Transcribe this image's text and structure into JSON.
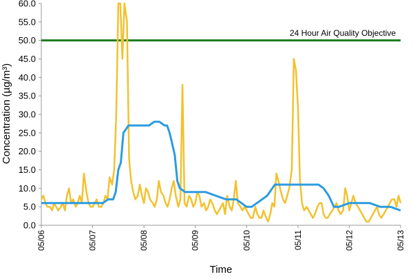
{
  "chart_data": {
    "type": "line",
    "title": "",
    "xlabel": "Time",
    "ylabel": "Concentration (µg/m³)",
    "ylim": [
      0,
      60
    ],
    "y_ticks": [
      "0.0",
      "5.0",
      "10.0",
      "15.0",
      "20.0",
      "25.0",
      "30.0",
      "35.0",
      "40.0",
      "45.0",
      "50.0",
      "55.0",
      "60.0"
    ],
    "x_ticks": [
      "05/06",
      "05/07",
      "05/08",
      "05/09",
      "05/10",
      "05/11",
      "05/12",
      "05/13"
    ],
    "xlim_days": [
      0,
      7
    ],
    "grid": false,
    "annotation": "24 Hour Air Quality Objective",
    "objective_value": 50,
    "colors": {
      "hourly": "#F2C12E",
      "rolling": "#2B9BE0",
      "objective": "#1E7A1E"
    },
    "series": [
      {
        "key": "hourly",
        "x_days": [
          0.0,
          0.04,
          0.08,
          0.12,
          0.17,
          0.21,
          0.25,
          0.29,
          0.33,
          0.38,
          0.42,
          0.46,
          0.5,
          0.54,
          0.58,
          0.62,
          0.67,
          0.71,
          0.75,
          0.79,
          0.83,
          0.88,
          0.92,
          0.96,
          1.0,
          1.04,
          1.08,
          1.12,
          1.17,
          1.21,
          1.25,
          1.29,
          1.33,
          1.38,
          1.42,
          1.46,
          1.5,
          1.54,
          1.58,
          1.62,
          1.67,
          1.71,
          1.75,
          1.79,
          1.83,
          1.88,
          1.92,
          1.96,
          2.0,
          2.04,
          2.08,
          2.12,
          2.17,
          2.21,
          2.25,
          2.29,
          2.33,
          2.38,
          2.42,
          2.46,
          2.5,
          2.54,
          2.58,
          2.62,
          2.67,
          2.71,
          2.75,
          2.79,
          2.83,
          2.88,
          2.92,
          2.96,
          3.0,
          3.04,
          3.08,
          3.12,
          3.17,
          3.21,
          3.25,
          3.29,
          3.33,
          3.38,
          3.42,
          3.46,
          3.5,
          3.54,
          3.58,
          3.62,
          3.67,
          3.71,
          3.75,
          3.79,
          3.83,
          3.88,
          3.92,
          3.96,
          4.0,
          4.04,
          4.08,
          4.12,
          4.17,
          4.21,
          4.25,
          4.29,
          4.33,
          4.38,
          4.42,
          4.46,
          4.5,
          4.54,
          4.58,
          4.62,
          4.67,
          4.71,
          4.75,
          4.79,
          4.83,
          4.88,
          4.92,
          4.96,
          5.0,
          5.04,
          5.08,
          5.12,
          5.17,
          5.21,
          5.25,
          5.29,
          5.33,
          5.38,
          5.42,
          5.46,
          5.5,
          5.54,
          5.58,
          5.62,
          5.67,
          5.71,
          5.75,
          5.79,
          5.83,
          5.88,
          5.92,
          5.96,
          6.0,
          6.04,
          6.08,
          6.12,
          6.17,
          6.21,
          6.25,
          6.29,
          6.33,
          6.38,
          6.42,
          6.46,
          6.5,
          6.54,
          6.58,
          6.62,
          6.67,
          6.71,
          6.75,
          6.79,
          6.83,
          6.88,
          6.92,
          6.96,
          7.0
        ],
        "values": [
          7,
          8,
          6,
          5,
          5,
          4,
          6,
          5,
          4,
          5,
          6,
          4,
          8,
          10,
          6,
          7,
          5,
          6,
          8,
          6,
          14,
          9,
          6,
          5,
          5,
          6,
          7,
          5,
          5,
          6,
          8,
          7,
          13,
          11,
          15,
          30,
          62,
          61,
          45,
          62,
          55,
          18,
          12,
          9,
          7,
          8,
          11,
          8,
          6,
          10,
          9,
          7,
          6,
          5,
          7,
          12,
          9,
          8,
          6,
          5,
          7,
          10,
          12,
          8,
          5,
          7,
          38,
          6,
          5,
          8,
          7,
          5,
          6,
          9,
          8,
          5,
          6,
          4,
          5,
          7,
          6,
          4,
          3,
          4,
          5,
          6,
          3,
          8,
          5,
          4,
          7,
          12,
          6,
          5,
          4,
          5,
          4,
          3,
          2,
          2,
          5,
          3,
          2,
          2,
          4,
          2,
          1,
          3,
          6,
          5,
          14,
          12,
          9,
          7,
          6,
          8,
          10,
          15,
          45,
          42,
          32,
          12,
          6,
          4,
          5,
          4,
          3,
          2,
          3,
          5,
          6,
          6,
          3,
          2,
          2,
          3,
          4,
          5,
          6,
          4,
          3,
          4,
          10,
          8,
          4,
          6,
          8,
          6,
          5,
          4,
          3,
          2,
          1,
          1,
          2,
          3,
          4,
          5,
          3,
          2,
          3,
          4,
          5,
          6,
          7,
          7,
          5,
          8,
          6
        ],
        "note_x_days": "hourly sampled roughly every hour"
      },
      {
        "key": "rolling",
        "x_days": [
          0.0,
          0.4,
          0.8,
          1.2,
          1.3,
          1.4,
          1.45,
          1.5,
          1.55,
          1.6,
          1.65,
          1.7,
          1.8,
          2.0,
          2.1,
          2.2,
          2.3,
          2.4,
          2.45,
          2.5,
          2.55,
          2.6,
          2.65,
          2.7,
          2.8,
          3.0,
          3.1,
          3.2,
          3.4,
          3.6,
          3.8,
          3.9,
          4.0,
          4.1,
          4.2,
          4.4,
          4.5,
          4.55,
          4.6,
          4.7,
          5.0,
          5.2,
          5.4,
          5.5,
          5.6,
          5.7,
          5.8,
          6.0,
          6.2,
          6.4,
          6.6,
          6.8,
          7.0
        ],
        "values": [
          6,
          6,
          6,
          6,
          7,
          7,
          9,
          15,
          17,
          25,
          26,
          27,
          27,
          27,
          27,
          28,
          28,
          27,
          27,
          25,
          22,
          19,
          12,
          10,
          9,
          9,
          9,
          9,
          8,
          7,
          7,
          6,
          5,
          5,
          6,
          8,
          10,
          11,
          11,
          11,
          11,
          11,
          11,
          10,
          8,
          5,
          5,
          6,
          6,
          6,
          5,
          5,
          4
        ]
      }
    ]
  }
}
